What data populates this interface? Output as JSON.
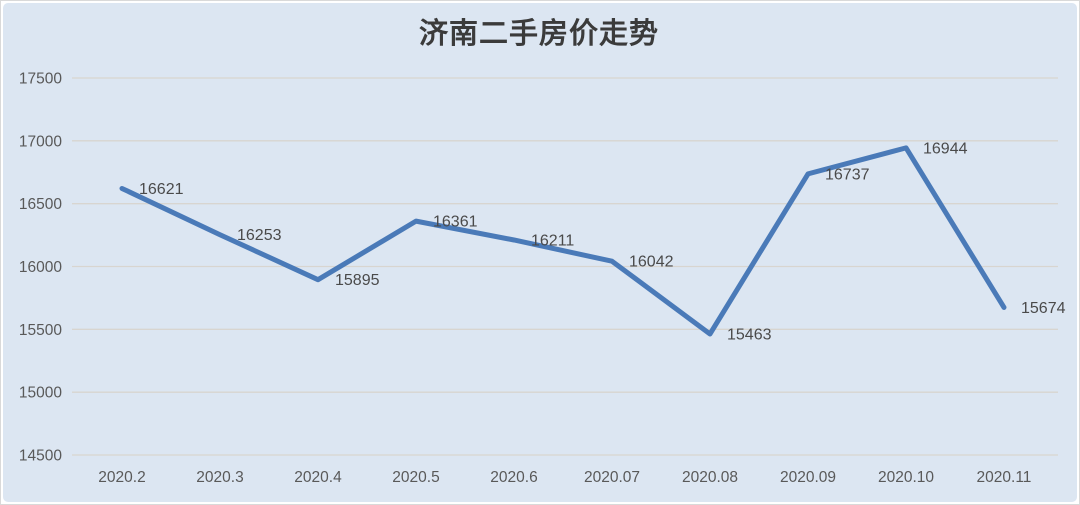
{
  "chart_data": {
    "type": "line",
    "title": "济南二手房价走势",
    "categories": [
      "2020.2",
      "2020.3",
      "2020.4",
      "2020.5",
      "2020.6",
      "2020.07",
      "2020.08",
      "2020.09",
      "2020.10",
      "2020.11"
    ],
    "values": [
      16621,
      16253,
      15895,
      16361,
      16211,
      16042,
      15463,
      16737,
      16944,
      15674
    ],
    "xlabel": "",
    "ylabel": "",
    "ylim": [
      14500,
      17500
    ],
    "ytick_step": 500,
    "ytick_labels": [
      "14500",
      "15000",
      "15500",
      "16000",
      "16500",
      "17000",
      "17500"
    ],
    "grid": true,
    "legend_position": "none",
    "data_labels_visible": true,
    "colors": {
      "line": "#4a7ab8",
      "plot_bg": "#dce6f2",
      "grid": "#d8d5d0",
      "axis_text": "#595959",
      "title_text": "#3b3b3b",
      "label_text": "#4a4a4a",
      "frame_bg": "#ffffff",
      "frame_border": "#d9d9d9"
    }
  }
}
